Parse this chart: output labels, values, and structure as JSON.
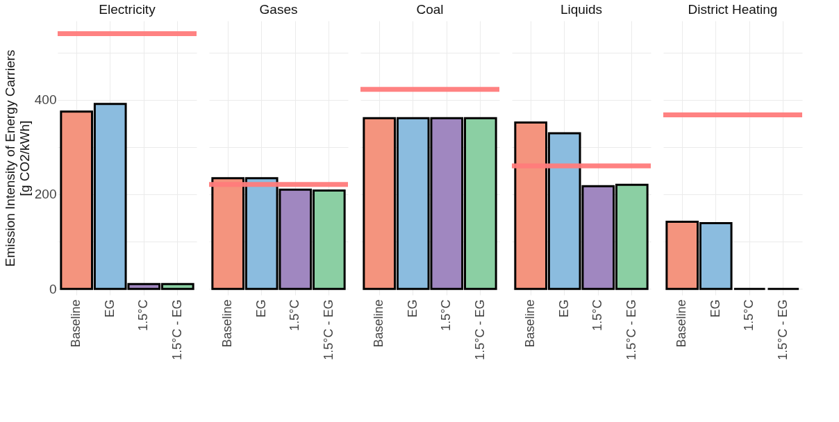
{
  "chart_data": [
    {
      "type": "bar",
      "title": "Electricity",
      "ylabel": "Emission Intensity of Energy Carriers\n[g CO2/kWh]",
      "categories": [
        "Baseline",
        "EG",
        "1.5°C",
        "1.5°C - EG"
      ],
      "values": [
        375,
        391,
        10,
        10
      ],
      "colors": [
        "#f4947e",
        "#8bbcdf",
        "#a087c0",
        "#8bcfa3"
      ],
      "ylim": [
        -13,
        567
      ],
      "yticks": [
        0,
        {
          "value": 100,
          "label": null
        },
        200,
        {
          "value": 300,
          "label": null
        },
        400,
        {
          "value": 500,
          "label": null
        }
      ],
      "grid": true,
      "ref_lines": [
        {
          "axis": "y",
          "value": 540,
          "color": "#ff7b7b"
        }
      ]
    },
    {
      "type": "bar",
      "title": "Gases",
      "categories": [
        "Baseline",
        "EG",
        "1.5°C",
        "1.5°C - EG"
      ],
      "values": [
        234,
        234,
        210,
        208
      ],
      "colors": [
        "#f4947e",
        "#8bbcdf",
        "#a087c0",
        "#8bcfa3"
      ],
      "ylim": [
        -13,
        567
      ],
      "yticks": [
        0,
        {
          "value": 100,
          "label": null
        },
        200,
        {
          "value": 300,
          "label": null
        },
        400,
        {
          "value": 500,
          "label": null
        }
      ],
      "grid": true,
      "tick_labels": "x",
      "ref_lines": [
        {
          "axis": "y",
          "value": 221,
          "color": "#ff7b7b"
        }
      ]
    },
    {
      "type": "bar",
      "title": "Coal",
      "categories": [
        "Baseline",
        "EG",
        "1.5°C",
        "1.5°C - EG"
      ],
      "values": [
        361,
        361,
        361,
        361
      ],
      "colors": [
        "#f4947e",
        "#8bbcdf",
        "#a087c0",
        "#8bcfa3"
      ],
      "ylim": [
        -13,
        567
      ],
      "yticks": [
        0,
        {
          "value": 100,
          "label": null
        },
        200,
        {
          "value": 300,
          "label": null
        },
        400,
        {
          "value": 500,
          "label": null
        }
      ],
      "grid": true,
      "tick_labels": "x",
      "ref_lines": [
        {
          "axis": "y",
          "value": 422,
          "color": "#ff7b7b"
        }
      ]
    },
    {
      "type": "bar",
      "title": "Liquids",
      "categories": [
        "Baseline",
        "EG",
        "1.5°C",
        "1.5°C - EG"
      ],
      "values": [
        352,
        329,
        217,
        220
      ],
      "colors": [
        "#f4947e",
        "#8bbcdf",
        "#a087c0",
        "#8bcfa3"
      ],
      "ylim": [
        -13,
        567
      ],
      "yticks": [
        0,
        {
          "value": 100,
          "label": null
        },
        200,
        {
          "value": 300,
          "label": null
        },
        400,
        {
          "value": 500,
          "label": null
        }
      ],
      "grid": true,
      "tick_labels": "x",
      "ref_lines": [
        {
          "axis": "y",
          "value": 260,
          "color": "#ff7b7b"
        }
      ]
    },
    {
      "type": "bar",
      "title": "District Heating",
      "categories": [
        "Baseline",
        "EG",
        "1.5°C",
        "1.5°C - EG"
      ],
      "values": [
        142,
        139,
        0,
        0
      ],
      "colors": [
        "#f4947e",
        "#8bbcdf",
        "#a087c0",
        "#8bcfa3"
      ],
      "ylim": [
        -13,
        567
      ],
      "yticks": [
        0,
        {
          "value": 100,
          "label": null
        },
        200,
        {
          "value": 300,
          "label": null
        },
        400,
        {
          "value": 500,
          "label": null
        }
      ],
      "grid": true,
      "tick_labels": "x",
      "ref_lines": [
        {
          "axis": "y",
          "value": 368,
          "color": "#ff7b7b"
        }
      ]
    }
  ]
}
